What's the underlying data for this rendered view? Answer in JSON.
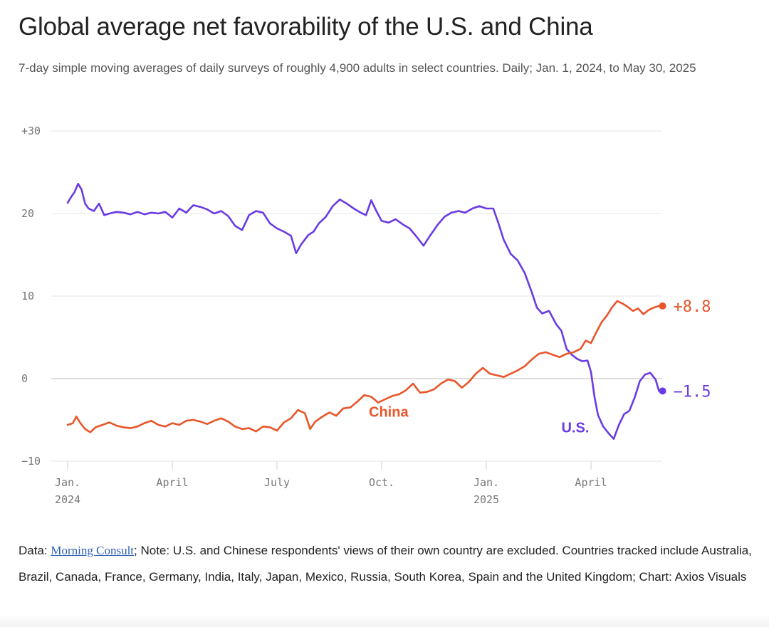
{
  "chart_data": {
    "type": "line",
    "title": "Global average net favorability of the U.S. and China",
    "subtitle": "7-day simple moving averages of daily surveys of roughly 4,900 adults in select countries. Daily; Jan. 1, 2024, to May 30, 2025",
    "y_ticks": [
      {
        "value": 30,
        "label": "+30"
      },
      {
        "value": 20,
        "label": "20"
      },
      {
        "value": 10,
        "label": "10"
      },
      {
        "value": 0,
        "label": "0"
      },
      {
        "value": -10,
        "label": "−10"
      }
    ],
    "ylim": [
      -10,
      30
    ],
    "x_ticks": [
      {
        "month": 0,
        "label": "Jan.",
        "sublabel": "2024"
      },
      {
        "month": 3,
        "label": "April",
        "sublabel": ""
      },
      {
        "month": 6,
        "label": "July",
        "sublabel": ""
      },
      {
        "month": 9,
        "label": "Oct.",
        "sublabel": ""
      },
      {
        "month": 12,
        "label": "Jan.",
        "sublabel": "2025"
      },
      {
        "month": 15,
        "label": "April",
        "sublabel": ""
      }
    ],
    "xlim_months": [
      0,
      17
    ],
    "series": [
      {
        "name": "U.S.",
        "label": "U.S.",
        "color": "#6a3be4",
        "end_label": "−1.5",
        "end_value": -1.5,
        "points": [
          [
            0.0,
            21.3
          ],
          [
            0.1,
            22.0
          ],
          [
            0.2,
            22.6
          ],
          [
            0.3,
            23.6
          ],
          [
            0.4,
            22.9
          ],
          [
            0.5,
            21.2
          ],
          [
            0.6,
            20.6
          ],
          [
            0.75,
            20.3
          ],
          [
            0.9,
            21.2
          ],
          [
            1.05,
            19.8
          ],
          [
            1.2,
            20.0
          ],
          [
            1.4,
            20.2
          ],
          [
            1.6,
            20.1
          ],
          [
            1.8,
            19.9
          ],
          [
            2.0,
            20.2
          ],
          [
            2.2,
            19.9
          ],
          [
            2.4,
            20.1
          ],
          [
            2.6,
            20.0
          ],
          [
            2.8,
            20.2
          ],
          [
            3.0,
            19.5
          ],
          [
            3.2,
            20.6
          ],
          [
            3.4,
            20.1
          ],
          [
            3.6,
            21.0
          ],
          [
            3.8,
            20.8
          ],
          [
            4.0,
            20.5
          ],
          [
            4.2,
            20.0
          ],
          [
            4.4,
            20.3
          ],
          [
            4.6,
            19.7
          ],
          [
            4.8,
            18.5
          ],
          [
            5.0,
            18.0
          ],
          [
            5.2,
            19.8
          ],
          [
            5.4,
            20.3
          ],
          [
            5.6,
            20.1
          ],
          [
            5.8,
            18.8
          ],
          [
            6.0,
            18.2
          ],
          [
            6.2,
            17.8
          ],
          [
            6.4,
            17.3
          ],
          [
            6.55,
            15.2
          ],
          [
            6.7,
            16.3
          ],
          [
            6.9,
            17.4
          ],
          [
            7.05,
            17.8
          ],
          [
            7.2,
            18.8
          ],
          [
            7.4,
            19.6
          ],
          [
            7.6,
            20.9
          ],
          [
            7.8,
            21.7
          ],
          [
            8.0,
            21.2
          ],
          [
            8.2,
            20.6
          ],
          [
            8.4,
            20.1
          ],
          [
            8.55,
            19.8
          ],
          [
            8.7,
            21.6
          ],
          [
            8.85,
            20.3
          ],
          [
            9.0,
            19.1
          ],
          [
            9.2,
            18.9
          ],
          [
            9.4,
            19.3
          ],
          [
            9.6,
            18.7
          ],
          [
            9.8,
            18.2
          ],
          [
            10.0,
            17.2
          ],
          [
            10.2,
            16.1
          ],
          [
            10.4,
            17.4
          ],
          [
            10.6,
            18.6
          ],
          [
            10.8,
            19.6
          ],
          [
            11.0,
            20.1
          ],
          [
            11.2,
            20.3
          ],
          [
            11.4,
            20.1
          ],
          [
            11.6,
            20.6
          ],
          [
            11.8,
            20.9
          ],
          [
            12.0,
            20.6
          ],
          [
            12.2,
            20.6
          ],
          [
            12.35,
            18.8
          ],
          [
            12.5,
            16.8
          ],
          [
            12.7,
            15.1
          ],
          [
            12.9,
            14.3
          ],
          [
            13.1,
            12.8
          ],
          [
            13.3,
            10.5
          ],
          [
            13.45,
            8.6
          ],
          [
            13.6,
            7.9
          ],
          [
            13.8,
            8.2
          ],
          [
            14.0,
            6.6
          ],
          [
            14.15,
            5.8
          ],
          [
            14.3,
            3.6
          ],
          [
            14.45,
            2.9
          ],
          [
            14.6,
            2.4
          ],
          [
            14.75,
            2.1
          ],
          [
            14.9,
            2.2
          ],
          [
            15.0,
            0.8
          ],
          [
            15.1,
            -2.2
          ],
          [
            15.2,
            -4.4
          ],
          [
            15.35,
            -5.8
          ],
          [
            15.5,
            -6.6
          ],
          [
            15.65,
            -7.3
          ],
          [
            15.8,
            -5.6
          ],
          [
            15.95,
            -4.3
          ],
          [
            16.1,
            -3.9
          ],
          [
            16.25,
            -2.3
          ],
          [
            16.4,
            -0.3
          ],
          [
            16.55,
            0.5
          ],
          [
            16.7,
            0.7
          ],
          [
            16.85,
            -0.1
          ],
          [
            16.95,
            -1.5
          ]
        ]
      },
      {
        "name": "China",
        "label": "China",
        "color": "#e8562a",
        "end_label": "+8.8",
        "end_value": 8.8,
        "points": [
          [
            0.0,
            -5.6
          ],
          [
            0.15,
            -5.4
          ],
          [
            0.25,
            -4.6
          ],
          [
            0.35,
            -5.3
          ],
          [
            0.5,
            -6.1
          ],
          [
            0.65,
            -6.5
          ],
          [
            0.8,
            -5.9
          ],
          [
            1.0,
            -5.6
          ],
          [
            1.2,
            -5.3
          ],
          [
            1.4,
            -5.7
          ],
          [
            1.6,
            -5.9
          ],
          [
            1.8,
            -6.0
          ],
          [
            2.0,
            -5.8
          ],
          [
            2.2,
            -5.4
          ],
          [
            2.4,
            -5.1
          ],
          [
            2.6,
            -5.6
          ],
          [
            2.8,
            -5.8
          ],
          [
            3.0,
            -5.4
          ],
          [
            3.2,
            -5.6
          ],
          [
            3.4,
            -5.1
          ],
          [
            3.6,
            -5.0
          ],
          [
            3.8,
            -5.2
          ],
          [
            4.0,
            -5.5
          ],
          [
            4.2,
            -5.1
          ],
          [
            4.4,
            -4.8
          ],
          [
            4.6,
            -5.2
          ],
          [
            4.8,
            -5.8
          ],
          [
            5.0,
            -6.1
          ],
          [
            5.2,
            -6.0
          ],
          [
            5.4,
            -6.4
          ],
          [
            5.6,
            -5.8
          ],
          [
            5.8,
            -5.9
          ],
          [
            6.0,
            -6.3
          ],
          [
            6.2,
            -5.3
          ],
          [
            6.4,
            -4.8
          ],
          [
            6.6,
            -3.8
          ],
          [
            6.8,
            -4.2
          ],
          [
            6.95,
            -6.1
          ],
          [
            7.1,
            -5.2
          ],
          [
            7.3,
            -4.6
          ],
          [
            7.5,
            -4.1
          ],
          [
            7.7,
            -4.5
          ],
          [
            7.9,
            -3.6
          ],
          [
            8.1,
            -3.5
          ],
          [
            8.3,
            -2.8
          ],
          [
            8.5,
            -2.0
          ],
          [
            8.7,
            -2.2
          ],
          [
            8.9,
            -2.9
          ],
          [
            9.1,
            -2.5
          ],
          [
            9.3,
            -2.1
          ],
          [
            9.5,
            -1.9
          ],
          [
            9.7,
            -1.4
          ],
          [
            9.9,
            -0.6
          ],
          [
            10.1,
            -1.7
          ],
          [
            10.3,
            -1.6
          ],
          [
            10.5,
            -1.3
          ],
          [
            10.7,
            -0.6
          ],
          [
            10.9,
            -0.1
          ],
          [
            11.1,
            -0.3
          ],
          [
            11.3,
            -1.1
          ],
          [
            11.5,
            -0.4
          ],
          [
            11.7,
            0.6
          ],
          [
            11.9,
            1.3
          ],
          [
            12.1,
            0.6
          ],
          [
            12.3,
            0.4
          ],
          [
            12.5,
            0.2
          ],
          [
            12.7,
            0.6
          ],
          [
            12.9,
            1.0
          ],
          [
            13.1,
            1.5
          ],
          [
            13.3,
            2.3
          ],
          [
            13.5,
            3.0
          ],
          [
            13.7,
            3.2
          ],
          [
            13.9,
            2.9
          ],
          [
            14.1,
            2.6
          ],
          [
            14.3,
            3.0
          ],
          [
            14.5,
            3.2
          ],
          [
            14.7,
            3.6
          ],
          [
            14.85,
            4.6
          ],
          [
            15.0,
            4.3
          ],
          [
            15.15,
            5.6
          ],
          [
            15.3,
            6.8
          ],
          [
            15.45,
            7.6
          ],
          [
            15.6,
            8.6
          ],
          [
            15.75,
            9.4
          ],
          [
            15.9,
            9.1
          ],
          [
            16.05,
            8.7
          ],
          [
            16.2,
            8.2
          ],
          [
            16.35,
            8.5
          ],
          [
            16.5,
            7.8
          ],
          [
            16.65,
            8.3
          ],
          [
            16.8,
            8.6
          ],
          [
            16.95,
            8.8
          ]
        ]
      }
    ]
  },
  "footer": {
    "prefix": "Data: ",
    "source_link": "Morning Consult",
    "rest": "; Note: U.S. and Chinese respondents' views of their own country are excluded. Countries tracked include Australia, Brazil, Canada, France, Germany, India, Italy, Japan, Mexico, Russia, South Korea, Spain and the United Kingdom; Chart: Axios Visuals"
  }
}
